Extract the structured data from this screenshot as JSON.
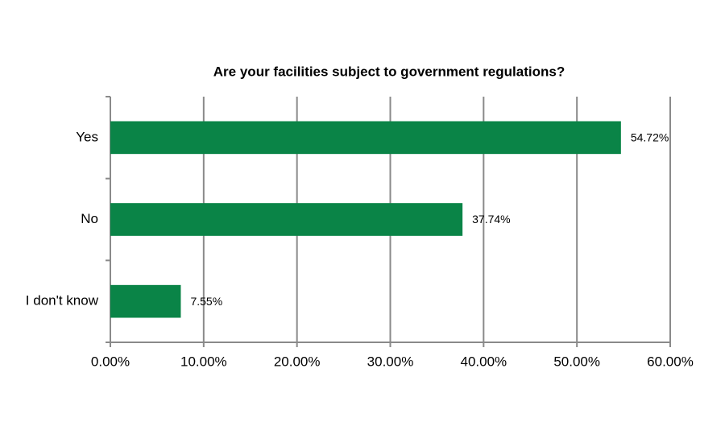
{
  "chart_data": {
    "type": "hbar",
    "title": "Are your facilities subject to government regulations?",
    "categories": [
      "Yes",
      "No",
      "I don't know"
    ],
    "values": [
      54.72,
      37.74,
      7.55
    ],
    "value_labels": [
      "54.72%",
      "37.74%",
      "7.55%"
    ],
    "color": "#0a8447",
    "xlim": [
      0,
      60
    ],
    "xticks": [
      {
        "value": 0,
        "label": "0.00%"
      },
      {
        "value": 10,
        "label": "10.00%"
      },
      {
        "value": 20,
        "label": "20.00%"
      },
      {
        "value": 30,
        "label": "30.00%"
      },
      {
        "value": 40,
        "label": "40.00%"
      },
      {
        "value": 50,
        "label": "50.00%"
      },
      {
        "value": 60,
        "label": "60.00%"
      }
    ],
    "grid": true
  }
}
